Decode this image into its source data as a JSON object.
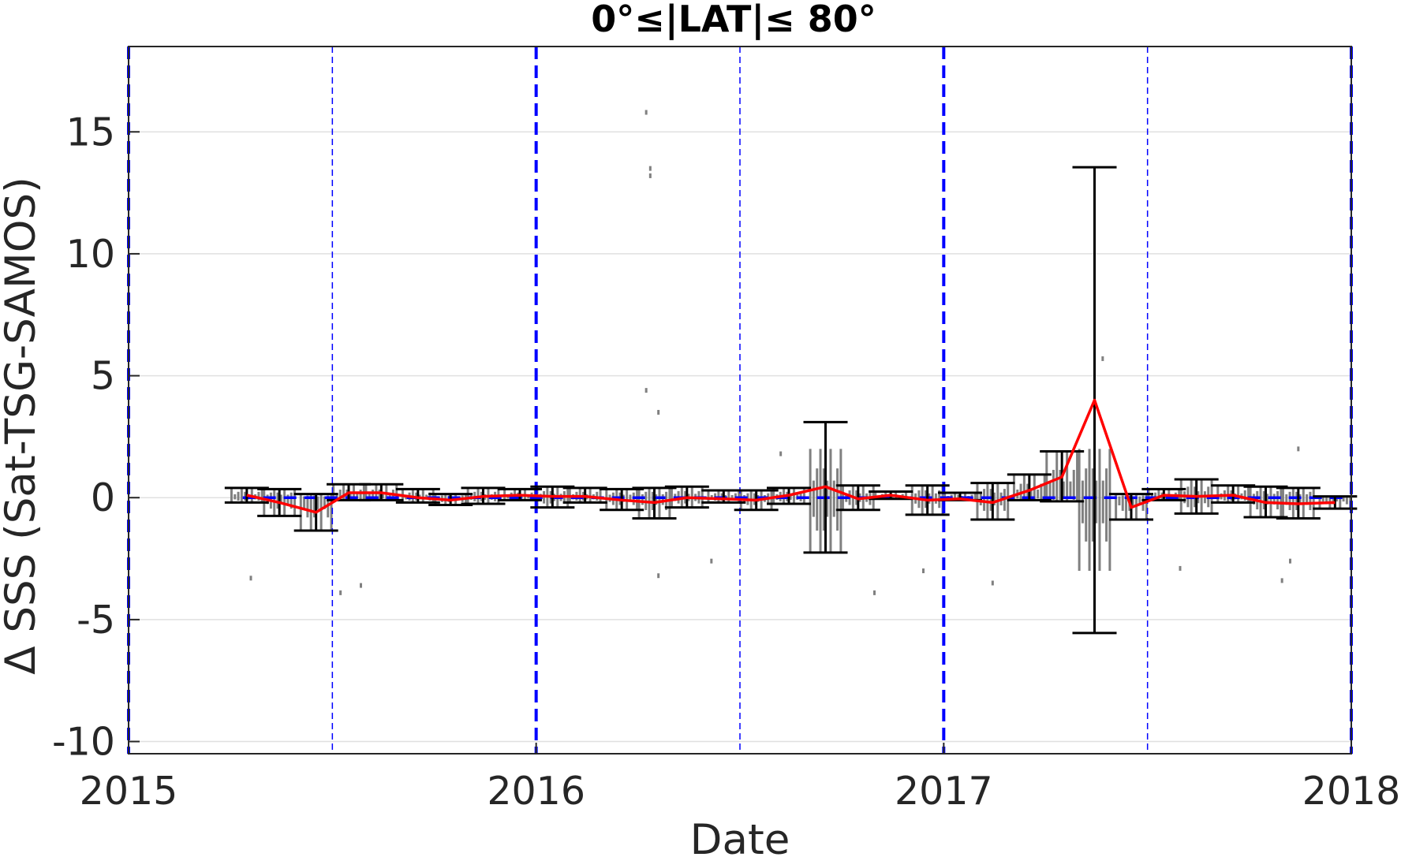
{
  "chart_data": {
    "type": "line",
    "title": "0°≤|LAT|≤ 80°",
    "xlabel": "Date",
    "ylabel": "Δ SSS (Sat-TSG-SAMOS)",
    "xlim": [
      2015.0,
      2018.0
    ],
    "ylim": [
      -10.5,
      18.5
    ],
    "x_ticks": [
      {
        "value": 2015,
        "label": "2015"
      },
      {
        "value": 2016,
        "label": "2016"
      },
      {
        "value": 2017,
        "label": "2017"
      },
      {
        "value": 2018,
        "label": "2018"
      }
    ],
    "y_ticks": [
      {
        "value": -10,
        "label": "-10"
      },
      {
        "value": -5,
        "label": "-5"
      },
      {
        "value": 0,
        "label": "0"
      },
      {
        "value": 5,
        "label": "5"
      },
      {
        "value": 10,
        "label": "10"
      },
      {
        "value": 15,
        "label": "15"
      }
    ],
    "grid": "horizontal",
    "colors": {
      "mean_line": "#ff0000",
      "error_bars": "#000000",
      "scatter": "#808080",
      "reference_lines": "#0000ff",
      "grid": "#e0e0e0"
    },
    "reference_lines": {
      "zero_line_y": 0,
      "year_lines_x": [
        2015.0,
        2016.0,
        2017.0,
        2018.0
      ],
      "half_year_lines_x": [
        2015.5,
        2016.5,
        2017.5
      ]
    },
    "monthly_mean": {
      "x": [
        2015.29,
        2015.37,
        2015.46,
        2015.54,
        2015.62,
        2015.71,
        2015.79,
        2015.87,
        2015.96,
        2016.04,
        2016.12,
        2016.21,
        2016.29,
        2016.37,
        2016.46,
        2016.54,
        2016.62,
        2016.71,
        2016.79,
        2016.87,
        2016.96,
        2017.04,
        2017.12,
        2017.21,
        2017.29,
        2017.37,
        2017.46,
        2017.54,
        2017.62,
        2017.71,
        2017.79,
        2017.87,
        2017.96
      ],
      "y": [
        0.1,
        -0.2,
        -0.6,
        0.2,
        0.2,
        0.0,
        -0.1,
        0.05,
        0.1,
        0.05,
        0.05,
        -0.1,
        -0.2,
        0.0,
        -0.05,
        -0.1,
        0.1,
        0.45,
        -0.05,
        0.1,
        -0.1,
        -0.05,
        -0.2,
        0.3,
        0.85,
        4.0,
        -0.4,
        0.1,
        0.05,
        0.1,
        -0.2,
        -0.25,
        -0.2
      ]
    },
    "error_bars": [
      {
        "x": 2015.29,
        "low": -0.2,
        "high": 0.4
      },
      {
        "x": 2015.37,
        "low": -0.75,
        "high": 0.35
      },
      {
        "x": 2015.46,
        "low": -1.35,
        "high": 0.15
      },
      {
        "x": 2015.54,
        "low": -0.1,
        "high": 0.55
      },
      {
        "x": 2015.62,
        "low": -0.1,
        "high": 0.55
      },
      {
        "x": 2015.71,
        "low": -0.2,
        "high": 0.35
      },
      {
        "x": 2015.79,
        "low": -0.3,
        "high": 0.15
      },
      {
        "x": 2015.87,
        "low": -0.25,
        "high": 0.4
      },
      {
        "x": 2015.96,
        "low": -0.1,
        "high": 0.35
      },
      {
        "x": 2016.04,
        "low": -0.4,
        "high": 0.45
      },
      {
        "x": 2016.12,
        "low": -0.2,
        "high": 0.4
      },
      {
        "x": 2016.21,
        "low": -0.5,
        "high": 0.35
      },
      {
        "x": 2016.29,
        "low": -0.85,
        "high": 0.4
      },
      {
        "x": 2016.37,
        "low": -0.4,
        "high": 0.45
      },
      {
        "x": 2016.46,
        "low": -0.2,
        "high": 0.3
      },
      {
        "x": 2016.54,
        "low": -0.5,
        "high": 0.3
      },
      {
        "x": 2016.62,
        "low": -0.25,
        "high": 0.4
      },
      {
        "x": 2016.71,
        "low": -2.25,
        "high": 3.1
      },
      {
        "x": 2016.79,
        "low": -0.5,
        "high": 0.5
      },
      {
        "x": 2016.87,
        "low": -0.05,
        "high": 0.25
      },
      {
        "x": 2016.96,
        "low": -0.7,
        "high": 0.5
      },
      {
        "x": 2017.04,
        "low": -0.1,
        "high": 0.2
      },
      {
        "x": 2017.12,
        "low": -0.9,
        "high": 0.6
      },
      {
        "x": 2017.21,
        "low": -0.1,
        "high": 0.95
      },
      {
        "x": 2017.29,
        "low": -0.15,
        "high": 1.9
      },
      {
        "x": 2017.37,
        "low": -5.55,
        "high": 13.55
      },
      {
        "x": 2017.46,
        "low": -0.9,
        "high": 0.15
      },
      {
        "x": 2017.54,
        "low": -0.1,
        "high": 0.35
      },
      {
        "x": 2017.62,
        "low": -0.65,
        "high": 0.75
      },
      {
        "x": 2017.71,
        "low": -0.2,
        "high": 0.5
      },
      {
        "x": 2017.79,
        "low": -0.8,
        "high": 0.45
      },
      {
        "x": 2017.87,
        "low": -0.85,
        "high": 0.4
      },
      {
        "x": 2017.96,
        "low": -0.45,
        "high": 0.05
      }
    ],
    "scatter_outliers": [
      {
        "x": 2016.27,
        "y": 15.8
      },
      {
        "x": 2016.28,
        "y": 13.5
      },
      {
        "x": 2016.28,
        "y": 13.2
      },
      {
        "x": 2016.27,
        "y": 4.4
      },
      {
        "x": 2016.3,
        "y": 3.5
      },
      {
        "x": 2017.39,
        "y": 5.7
      },
      {
        "x": 2015.3,
        "y": -3.3
      },
      {
        "x": 2015.52,
        "y": -3.9
      },
      {
        "x": 2015.57,
        "y": -3.6
      },
      {
        "x": 2016.3,
        "y": -3.2
      },
      {
        "x": 2016.43,
        "y": -2.6
      },
      {
        "x": 2016.83,
        "y": -3.9
      },
      {
        "x": 2016.95,
        "y": -3.0
      },
      {
        "x": 2017.12,
        "y": -3.5
      },
      {
        "x": 2017.58,
        "y": -2.9
      },
      {
        "x": 2017.83,
        "y": -3.4
      },
      {
        "x": 2017.85,
        "y": -2.6
      },
      {
        "x": 2016.6,
        "y": 1.8
      },
      {
        "x": 2017.87,
        "y": 2.0
      }
    ]
  }
}
